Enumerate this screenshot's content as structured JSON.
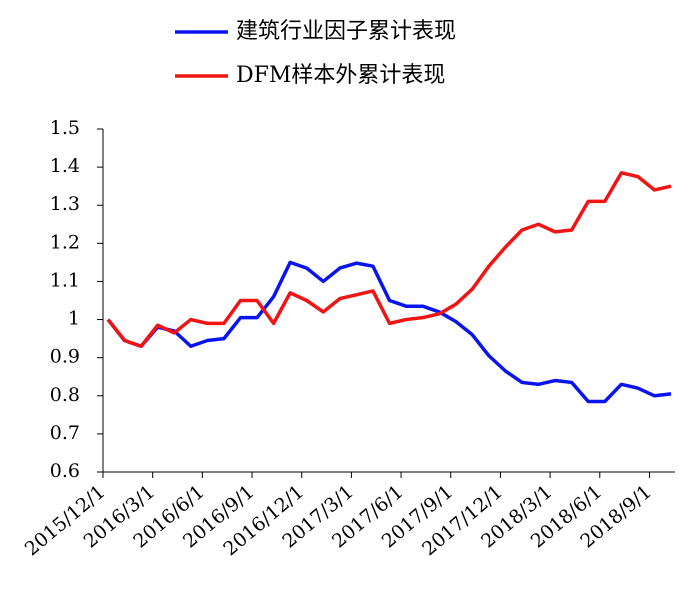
{
  "chart_data": {
    "type": "line",
    "categories": [
      "2015/12/1",
      null,
      null,
      "2016/3/1",
      null,
      null,
      "2016/6/1",
      null,
      null,
      "2016/9/1",
      null,
      null,
      "2016/12/1",
      null,
      null,
      "2017/3/1",
      null,
      null,
      "2017/6/1",
      null,
      null,
      "2017/9/1",
      null,
      null,
      "2017/12/1",
      null,
      null,
      "2018/3/1",
      null,
      null,
      "2018/6/1",
      null,
      null,
      "2018/9/1",
      null
    ],
    "series": [
      {
        "name": "建筑行业因子累计表现",
        "color": "#0a14f0",
        "values": [
          1.0,
          0.945,
          0.93,
          0.98,
          0.97,
          0.93,
          0.945,
          0.95,
          1.005,
          1.005,
          1.06,
          1.15,
          1.135,
          1.1,
          1.135,
          1.148,
          1.14,
          1.05,
          1.035,
          1.035,
          1.02,
          0.995,
          0.96,
          0.905,
          0.865,
          0.835,
          0.83,
          0.84,
          0.835,
          0.785,
          0.785,
          0.83,
          0.82,
          0.8,
          0.805
        ]
      },
      {
        "name": "DFM样本外累计表现",
        "color": "#f01414",
        "values": [
          1.0,
          0.945,
          0.93,
          0.985,
          0.965,
          1.0,
          0.99,
          0.99,
          1.05,
          1.05,
          0.99,
          1.07,
          1.05,
          1.02,
          1.055,
          1.065,
          1.075,
          0.99,
          1.0,
          1.005,
          1.015,
          1.04,
          1.08,
          1.14,
          1.19,
          1.235,
          1.25,
          1.23,
          1.235,
          1.31,
          1.31,
          1.385,
          1.375,
          1.34,
          1.35
        ]
      }
    ],
    "ylim": [
      0.6,
      1.5
    ],
    "yticks": [
      0.6,
      0.7,
      0.8,
      0.9,
      1,
      1.1,
      1.2,
      1.3,
      1.4,
      1.5
    ],
    "grid": false
  }
}
